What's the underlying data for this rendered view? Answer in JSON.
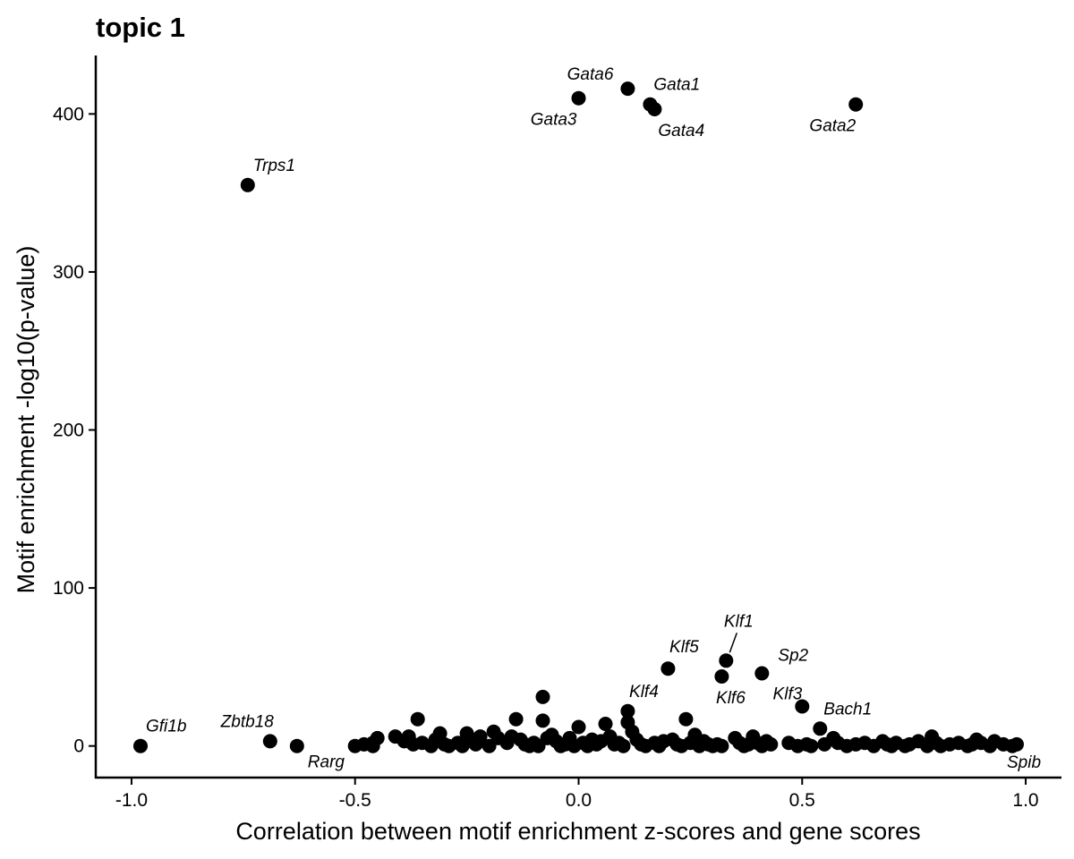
{
  "chart_data": {
    "type": "scatter",
    "title": "topic 1",
    "xlabel": "Correlation between motif enrichment z-scores and gene scores",
    "ylabel": "Motif enrichment -log10(p-value)",
    "xlim": [
      -1.08,
      1.08
    ],
    "ylim": [
      -20,
      437
    ],
    "x_ticks": [
      -1.0,
      -0.5,
      0.0,
      0.5,
      1.0
    ],
    "x_tick_labels": [
      "-1.0",
      "-0.5",
      "0.0",
      "0.5",
      "1.0"
    ],
    "y_ticks": [
      0,
      100,
      200,
      300,
      400
    ],
    "y_tick_labels": [
      "0",
      "100",
      "200",
      "300",
      "400"
    ],
    "grid": false,
    "legend": "none",
    "point_color": "#000000",
    "labeled_points": [
      {
        "label": "Gata6",
        "x": 0.11,
        "y": 416,
        "anchor": "end",
        "dx": -16,
        "dy": -10
      },
      {
        "label": "Gata1",
        "x": 0.16,
        "y": 406,
        "anchor": "start",
        "dx": 4,
        "dy": -16
      },
      {
        "label": "Gata3",
        "x": 0.0,
        "y": 410,
        "anchor": "end",
        "dx": -2,
        "dy": 30
      },
      {
        "label": "Gata4",
        "x": 0.17,
        "y": 403,
        "anchor": "start",
        "dx": 4,
        "dy": 30
      },
      {
        "label": "Gata2",
        "x": 0.62,
        "y": 406,
        "anchor": "end",
        "dx": 0,
        "dy": 30
      },
      {
        "label": "Trps1",
        "x": -0.74,
        "y": 355,
        "anchor": "start",
        "dx": 6,
        "dy": -16
      },
      {
        "label": "Klf1",
        "x": 0.33,
        "y": 54,
        "anchor": "middle",
        "dx": 14,
        "dy": -38
      },
      {
        "label": "Klf5",
        "x": 0.2,
        "y": 49,
        "anchor": "middle",
        "dx": 18,
        "dy": -18
      },
      {
        "label": "Sp2",
        "x": 0.41,
        "y": 46,
        "anchor": "start",
        "dx": 18,
        "dy": -14
      },
      {
        "label": "Klf6",
        "x": 0.32,
        "y": 44,
        "anchor": "middle",
        "dx": 10,
        "dy": 30
      },
      {
        "label": "Klf3",
        "x": 0.5,
        "y": 25,
        "anchor": "end",
        "dx": 0,
        "dy": -8
      },
      {
        "label": "Klf4",
        "x": 0.11,
        "y": 22,
        "anchor": "middle",
        "dx": 18,
        "dy": -16
      },
      {
        "label": "Bach1",
        "x": 0.54,
        "y": 11,
        "anchor": "start",
        "dx": 4,
        "dy": -16
      },
      {
        "label": "Gfi1b",
        "x": -0.98,
        "y": 0,
        "anchor": "start",
        "dx": 6,
        "dy": -16
      },
      {
        "label": "Zbtb18",
        "x": -0.69,
        "y": 3,
        "anchor": "end",
        "dx": 4,
        "dy": -16
      },
      {
        "label": "Rarg",
        "x": -0.63,
        "y": 0,
        "anchor": "start",
        "dx": 12,
        "dy": 24
      },
      {
        "label": "Spib",
        "x": 0.98,
        "y": 1,
        "anchor": "middle",
        "dx": 8,
        "dy": 26
      }
    ],
    "other_points": [
      [
        -0.5,
        0
      ],
      [
        -0.48,
        1
      ],
      [
        -0.46,
        0
      ],
      [
        -0.46,
        2
      ],
      [
        -0.45,
        5
      ],
      [
        -0.41,
        6
      ],
      [
        -0.39,
        3
      ],
      [
        -0.38,
        6
      ],
      [
        -0.37,
        1
      ],
      [
        -0.36,
        17
      ],
      [
        -0.35,
        2
      ],
      [
        -0.33,
        0
      ],
      [
        -0.32,
        4
      ],
      [
        -0.31,
        8
      ],
      [
        -0.3,
        1
      ],
      [
        -0.29,
        0
      ],
      [
        -0.27,
        2
      ],
      [
        -0.26,
        0
      ],
      [
        -0.25,
        8
      ],
      [
        -0.24,
        4
      ],
      [
        -0.23,
        1
      ],
      [
        -0.22,
        6
      ],
      [
        -0.2,
        0
      ],
      [
        -0.19,
        9
      ],
      [
        -0.18,
        5
      ],
      [
        -0.16,
        2
      ],
      [
        -0.15,
        6
      ],
      [
        -0.14,
        17
      ],
      [
        -0.13,
        4
      ],
      [
        -0.12,
        1
      ],
      [
        -0.11,
        0
      ],
      [
        -0.1,
        2
      ],
      [
        -0.09,
        0
      ],
      [
        -0.08,
        31
      ],
      [
        -0.08,
        16
      ],
      [
        -0.07,
        5
      ],
      [
        -0.06,
        7
      ],
      [
        -0.05,
        3
      ],
      [
        -0.04,
        0
      ],
      [
        -0.03,
        1
      ],
      [
        -0.02,
        5
      ],
      [
        -0.01,
        0
      ],
      [
        0.0,
        12
      ],
      [
        0.01,
        2
      ],
      [
        0.02,
        0
      ],
      [
        0.03,
        4
      ],
      [
        0.04,
        1
      ],
      [
        0.05,
        3
      ],
      [
        0.06,
        14
      ],
      [
        0.07,
        6
      ],
      [
        0.08,
        1
      ],
      [
        0.09,
        2
      ],
      [
        0.1,
        0
      ],
      [
        0.11,
        15
      ],
      [
        0.12,
        9
      ],
      [
        0.13,
        4
      ],
      [
        0.14,
        1
      ],
      [
        0.15,
        0
      ],
      [
        0.17,
        2
      ],
      [
        0.18,
        0
      ],
      [
        0.19,
        3
      ],
      [
        0.21,
        4
      ],
      [
        0.22,
        1
      ],
      [
        0.23,
        0
      ],
      [
        0.24,
        17
      ],
      [
        0.25,
        2
      ],
      [
        0.26,
        7
      ],
      [
        0.27,
        0
      ],
      [
        0.28,
        3
      ],
      [
        0.29,
        1
      ],
      [
        0.3,
        0
      ],
      [
        0.31,
        1
      ],
      [
        0.32,
        0
      ],
      [
        0.35,
        5
      ],
      [
        0.36,
        2
      ],
      [
        0.37,
        0
      ],
      [
        0.38,
        1
      ],
      [
        0.39,
        6
      ],
      [
        0.4,
        2
      ],
      [
        0.41,
        0
      ],
      [
        0.42,
        3
      ],
      [
        0.43,
        1
      ],
      [
        0.47,
        2
      ],
      [
        0.49,
        0
      ],
      [
        0.51,
        1
      ],
      [
        0.52,
        0
      ],
      [
        0.55,
        1
      ],
      [
        0.57,
        5
      ],
      [
        0.58,
        2
      ],
      [
        0.6,
        0
      ],
      [
        0.62,
        1
      ],
      [
        0.64,
        2
      ],
      [
        0.66,
        0
      ],
      [
        0.68,
        3
      ],
      [
        0.69,
        1
      ],
      [
        0.7,
        0
      ],
      [
        0.71,
        2
      ],
      [
        0.73,
        0
      ],
      [
        0.74,
        1
      ],
      [
        0.76,
        3
      ],
      [
        0.78,
        0
      ],
      [
        0.79,
        6
      ],
      [
        0.8,
        2
      ],
      [
        0.81,
        0
      ],
      [
        0.83,
        1
      ],
      [
        0.85,
        2
      ],
      [
        0.87,
        0
      ],
      [
        0.88,
        1
      ],
      [
        0.89,
        4
      ],
      [
        0.9,
        2
      ],
      [
        0.92,
        0
      ],
      [
        0.93,
        3
      ],
      [
        0.95,
        1
      ],
      [
        0.97,
        0
      ]
    ]
  }
}
